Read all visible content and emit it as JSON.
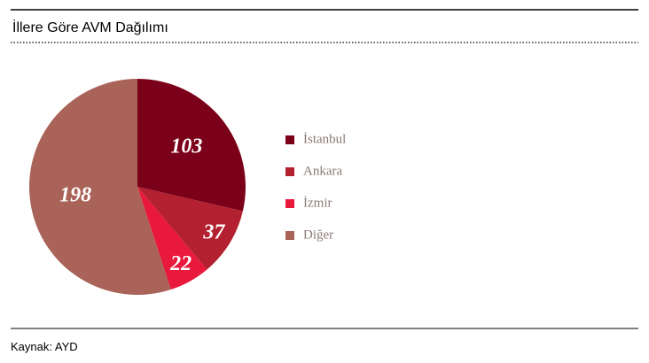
{
  "chart_data": {
    "type": "pie",
    "title": "İllere Göre AVM Dağılımı",
    "categories": [
      "İstanbul",
      "Ankara",
      "İzmir",
      "Diğer"
    ],
    "values": [
      103,
      37,
      22,
      198
    ],
    "colors": [
      "#7b0019",
      "#b3202f",
      "#e8193b",
      "#a96358"
    ],
    "legend": "right",
    "source": "Kaynak: AYD"
  }
}
